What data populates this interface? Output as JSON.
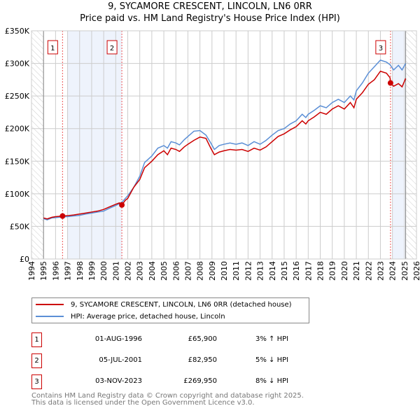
{
  "chart_data": {
    "type": "line",
    "title": "9, SYCAMORE CRESCENT, LINCOLN, LN6 0RR",
    "subtitle": "Price paid vs. HM Land Registry's House Price Index (HPI)",
    "xlim": [
      1994,
      2026
    ],
    "ylim": [
      0,
      350000
    ],
    "y_ticks": [
      {
        "v": 0,
        "label": "£0"
      },
      {
        "v": 50000,
        "label": "£50K"
      },
      {
        "v": 100000,
        "label": "£100K"
      },
      {
        "v": 150000,
        "label": "£150K"
      },
      {
        "v": 200000,
        "label": "£200K"
      },
      {
        "v": 250000,
        "label": "£250K"
      },
      {
        "v": 300000,
        "label": "£300K"
      },
      {
        "v": 350000,
        "label": "£350K"
      }
    ],
    "x_ticks": [
      "1994",
      "1995",
      "1996",
      "1997",
      "1998",
      "1999",
      "2000",
      "2001",
      "2002",
      "2003",
      "2004",
      "2005",
      "2006",
      "2007",
      "2008",
      "2009",
      "2010",
      "2011",
      "2012",
      "2013",
      "2014",
      "2015",
      "2016",
      "2017",
      "2018",
      "2019",
      "2020",
      "2021",
      "2022",
      "2023",
      "2024",
      "2025",
      "2026"
    ],
    "grid": true,
    "series": [
      {
        "name": "9, SYCAMORE CRESCENT, LINCOLN, LN6 0RR (detached house)",
        "color": "#cc0000",
        "points": [
          [
            1995,
            63000
          ],
          [
            1995.3,
            61500
          ],
          [
            1995.7,
            64000
          ],
          [
            1996,
            65000
          ],
          [
            1996.58,
            65900
          ],
          [
            1997,
            66500
          ],
          [
            1997.5,
            67500
          ],
          [
            1998,
            69000
          ],
          [
            1998.5,
            70500
          ],
          [
            1999,
            72000
          ],
          [
            1999.5,
            73500
          ],
          [
            2000,
            76000
          ],
          [
            2000.5,
            80000
          ],
          [
            2001,
            84000
          ],
          [
            2001.3,
            86000
          ],
          [
            2001.51,
            82950
          ],
          [
            2001.8,
            90000
          ],
          [
            2002,
            93000
          ],
          [
            2002.5,
            110000
          ],
          [
            2003,
            122000
          ],
          [
            2003.4,
            140000
          ],
          [
            2004,
            150000
          ],
          [
            2004.5,
            160000
          ],
          [
            2005,
            166000
          ],
          [
            2005.3,
            160000
          ],
          [
            2005.6,
            170000
          ],
          [
            2006,
            168000
          ],
          [
            2006.3,
            165000
          ],
          [
            2006.7,
            172000
          ],
          [
            2007,
            176000
          ],
          [
            2007.5,
            182000
          ],
          [
            2008,
            187000
          ],
          [
            2008.5,
            185000
          ],
          [
            2008.9,
            170000
          ],
          [
            2009.2,
            160000
          ],
          [
            2009.6,
            164000
          ],
          [
            2010,
            166000
          ],
          [
            2010.5,
            168000
          ],
          [
            2011,
            167000
          ],
          [
            2011.5,
            168000
          ],
          [
            2012,
            165000
          ],
          [
            2012.5,
            170000
          ],
          [
            2013,
            167000
          ],
          [
            2013.5,
            172000
          ],
          [
            2014,
            180000
          ],
          [
            2014.5,
            188000
          ],
          [
            2015,
            192000
          ],
          [
            2015.5,
            198000
          ],
          [
            2016,
            203000
          ],
          [
            2016.5,
            212000
          ],
          [
            2016.8,
            207000
          ],
          [
            2017,
            212000
          ],
          [
            2017.5,
            218000
          ],
          [
            2018,
            225000
          ],
          [
            2018.5,
            222000
          ],
          [
            2019,
            230000
          ],
          [
            2019.5,
            235000
          ],
          [
            2020,
            230000
          ],
          [
            2020.5,
            240000
          ],
          [
            2020.8,
            232000
          ],
          [
            2021,
            245000
          ],
          [
            2021.5,
            255000
          ],
          [
            2022,
            268000
          ],
          [
            2022.5,
            275000
          ],
          [
            2023,
            288000
          ],
          [
            2023.5,
            285000
          ],
          [
            2023.8,
            278000
          ],
          [
            2023.84,
            269950
          ],
          [
            2024.1,
            265000
          ],
          [
            2024.5,
            269000
          ],
          [
            2024.8,
            264000
          ],
          [
            2025.1,
            277000
          ]
        ]
      },
      {
        "name": "HPI: Average price, detached house, Lincoln",
        "color": "#5b8fd6",
        "points": [
          [
            1995,
            62000
          ],
          [
            1995.3,
            60000
          ],
          [
            1995.7,
            63000
          ],
          [
            1996,
            63500
          ],
          [
            1996.58,
            64500
          ],
          [
            1997,
            65000
          ],
          [
            1997.5,
            66000
          ],
          [
            1998,
            67000
          ],
          [
            1998.5,
            69000
          ],
          [
            1999,
            70500
          ],
          [
            1999.5,
            72000
          ],
          [
            2000,
            73500
          ],
          [
            2000.5,
            78000
          ],
          [
            2001,
            82000
          ],
          [
            2001.51,
            87000
          ],
          [
            2002,
            97000
          ],
          [
            2002.5,
            110000
          ],
          [
            2003,
            127000
          ],
          [
            2003.4,
            148000
          ],
          [
            2004,
            158000
          ],
          [
            2004.5,
            170000
          ],
          [
            2005,
            174000
          ],
          [
            2005.3,
            170000
          ],
          [
            2005.6,
            180000
          ],
          [
            2006,
            178000
          ],
          [
            2006.3,
            175000
          ],
          [
            2006.7,
            183000
          ],
          [
            2007,
            188000
          ],
          [
            2007.5,
            196000
          ],
          [
            2008,
            197000
          ],
          [
            2008.5,
            190000
          ],
          [
            2008.9,
            178000
          ],
          [
            2009.2,
            168000
          ],
          [
            2009.6,
            174000
          ],
          [
            2010,
            176000
          ],
          [
            2010.5,
            178000
          ],
          [
            2011,
            176000
          ],
          [
            2011.5,
            178000
          ],
          [
            2012,
            174000
          ],
          [
            2012.5,
            180000
          ],
          [
            2013,
            176000
          ],
          [
            2013.5,
            182000
          ],
          [
            2014,
            190000
          ],
          [
            2014.5,
            197000
          ],
          [
            2015,
            200000
          ],
          [
            2015.5,
            207000
          ],
          [
            2016,
            212000
          ],
          [
            2016.5,
            222000
          ],
          [
            2016.8,
            217000
          ],
          [
            2017,
            222000
          ],
          [
            2017.5,
            228000
          ],
          [
            2018,
            235000
          ],
          [
            2018.5,
            232000
          ],
          [
            2019,
            240000
          ],
          [
            2019.5,
            245000
          ],
          [
            2020,
            240000
          ],
          [
            2020.5,
            250000
          ],
          [
            2020.8,
            244000
          ],
          [
            2021,
            258000
          ],
          [
            2021.5,
            270000
          ],
          [
            2022,
            285000
          ],
          [
            2022.5,
            295000
          ],
          [
            2023,
            305000
          ],
          [
            2023.5,
            302000
          ],
          [
            2023.8,
            298000
          ],
          [
            2024.1,
            290000
          ],
          [
            2024.5,
            297000
          ],
          [
            2024.8,
            290000
          ],
          [
            2025.1,
            300000
          ]
        ]
      }
    ],
    "sales": [
      {
        "n": "1",
        "x": 1996.58,
        "value": 65900
      },
      {
        "n": "2",
        "x": 2001.51,
        "value": 82950
      },
      {
        "n": "3",
        "x": 2023.84,
        "value": 269950
      }
    ],
    "shaded": [
      [
        1996.97,
        2001.51
      ],
      [
        2024.0,
        2025.1
      ]
    ],
    "hatched": [
      [
        1994,
        1995
      ],
      [
        2025.1,
        2026
      ]
    ],
    "legend": "below"
  },
  "legend": {
    "property": "9, SYCAMORE CRESCENT, LINCOLN, LN6 0RR (detached house)",
    "hpi": "HPI: Average price, detached house, Lincoln"
  },
  "table": [
    {
      "n": "1",
      "date": "01-AUG-1996",
      "price": "£65,900",
      "hpi": "3% ↑ HPI"
    },
    {
      "n": "2",
      "date": "05-JUL-2001",
      "price": "£82,950",
      "hpi": "5% ↓ HPI"
    },
    {
      "n": "3",
      "date": "03-NOV-2023",
      "price": "£269,950",
      "hpi": "8% ↓ HPI"
    }
  ],
  "footer": [
    "Contains HM Land Registry data © Crown copyright and database right 2025.",
    "This data is licensed under the Open Government Licence v3.0."
  ]
}
